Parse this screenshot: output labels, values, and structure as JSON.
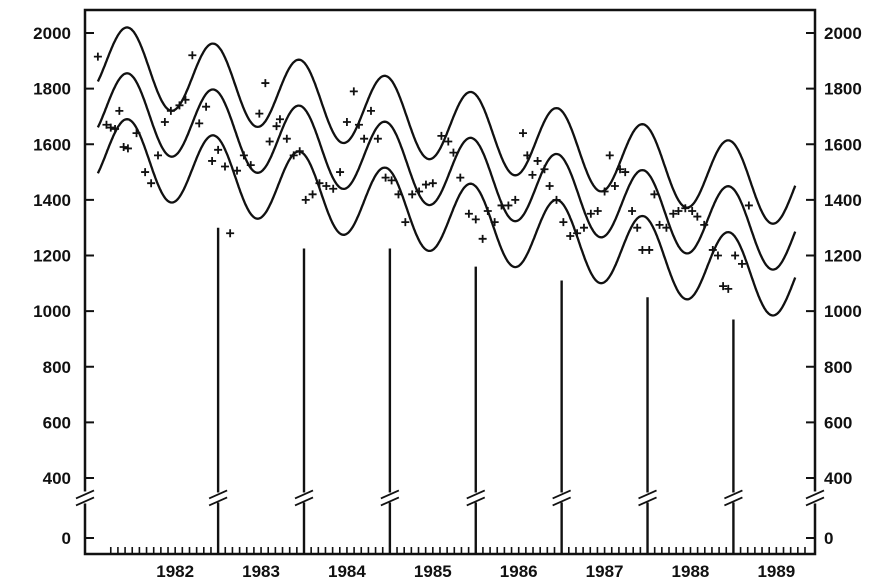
{
  "chart_data": {
    "type": "line",
    "title": "",
    "xlabel": "",
    "ylabel": "",
    "xlim": [
      1981.45,
      1989.95
    ],
    "ylim": [
      0,
      2050
    ],
    "y_axis_break": [
      60,
      300
    ],
    "grid": false,
    "left_ticks": [
      "0",
      "400",
      "600",
      "800",
      "1000",
      "1200",
      "1400",
      "1600",
      "1800",
      "2000"
    ],
    "right_ticks": [
      "0",
      "400",
      "600",
      "800",
      "1000",
      "1200",
      "1400",
      "1600",
      "1800",
      "2000"
    ],
    "x_tick_labels": [
      "1982",
      "1983",
      "1984",
      "1985",
      "1986",
      "1987",
      "1988",
      "1989"
    ],
    "x_tick_positions": [
      1982.0,
      1983.0,
      1984.0,
      1985.0,
      1986.0,
      1987.0,
      1988.0,
      1989.0
    ],
    "curve_model": {
      "base_at_1981_6": 1740,
      "slope_per_year": -58,
      "amplitude": 135,
      "peak_phase": 0.35,
      "band_offsets": [
        165,
        0,
        -165
      ]
    },
    "series": [
      {
        "values": [
          [
            1981.6,
            1915
          ],
          [
            1981.7,
            1670
          ],
          [
            1981.75,
            1660
          ],
          [
            1981.8,
            1655
          ],
          [
            1981.85,
            1720
          ],
          [
            1981.9,
            1590
          ],
          [
            1981.95,
            1585
          ],
          [
            1982.05,
            1640
          ],
          [
            1982.15,
            1500
          ],
          [
            1982.22,
            1460
          ],
          [
            1982.3,
            1560
          ],
          [
            1982.38,
            1680
          ],
          [
            1982.45,
            1720
          ],
          [
            1982.55,
            1740
          ],
          [
            1982.62,
            1760
          ],
          [
            1982.7,
            1920
          ],
          [
            1982.78,
            1675
          ],
          [
            1982.86,
            1735
          ],
          [
            1982.93,
            1540
          ],
          [
            1983.0,
            1580
          ],
          [
            1983.08,
            1520
          ],
          [
            1983.14,
            1280
          ],
          [
            1983.22,
            1505
          ],
          [
            1983.3,
            1560
          ],
          [
            1983.38,
            1525
          ],
          [
            1983.48,
            1710
          ],
          [
            1983.55,
            1820
          ],
          [
            1983.6,
            1610
          ],
          [
            1983.68,
            1665
          ],
          [
            1983.72,
            1690
          ],
          [
            1983.8,
            1620
          ],
          [
            1983.88,
            1560
          ],
          [
            1983.95,
            1575
          ],
          [
            1984.02,
            1400
          ],
          [
            1984.1,
            1420
          ],
          [
            1984.18,
            1460
          ],
          [
            1984.26,
            1450
          ],
          [
            1984.34,
            1440
          ],
          [
            1984.42,
            1500
          ],
          [
            1984.5,
            1680
          ],
          [
            1984.58,
            1790
          ],
          [
            1984.64,
            1670
          ],
          [
            1984.7,
            1620
          ],
          [
            1984.78,
            1720
          ],
          [
            1984.86,
            1620
          ],
          [
            1984.95,
            1480
          ],
          [
            1985.02,
            1470
          ],
          [
            1985.1,
            1420
          ],
          [
            1985.18,
            1320
          ],
          [
            1985.26,
            1420
          ],
          [
            1985.34,
            1430
          ],
          [
            1985.42,
            1455
          ],
          [
            1985.5,
            1460
          ],
          [
            1985.6,
            1630
          ],
          [
            1985.68,
            1610
          ],
          [
            1985.74,
            1570
          ],
          [
            1985.82,
            1480
          ],
          [
            1985.92,
            1350
          ],
          [
            1986.0,
            1330
          ],
          [
            1986.08,
            1260
          ],
          [
            1986.14,
            1360
          ],
          [
            1986.22,
            1320
          ],
          [
            1986.3,
            1380
          ],
          [
            1986.38,
            1380
          ],
          [
            1986.46,
            1400
          ],
          [
            1986.55,
            1640
          ],
          [
            1986.6,
            1560
          ],
          [
            1986.66,
            1490
          ],
          [
            1986.72,
            1540
          ],
          [
            1986.8,
            1510
          ],
          [
            1986.86,
            1450
          ],
          [
            1986.94,
            1400
          ],
          [
            1987.02,
            1320
          ],
          [
            1987.1,
            1270
          ],
          [
            1987.18,
            1280
          ],
          [
            1987.26,
            1300
          ],
          [
            1987.34,
            1350
          ],
          [
            1987.42,
            1360
          ],
          [
            1987.5,
            1430
          ],
          [
            1987.56,
            1560
          ],
          [
            1987.62,
            1450
          ],
          [
            1987.68,
            1510
          ],
          [
            1987.74,
            1500
          ],
          [
            1987.82,
            1360
          ],
          [
            1987.88,
            1300
          ],
          [
            1987.94,
            1220
          ],
          [
            1988.02,
            1220
          ],
          [
            1988.08,
            1420
          ],
          [
            1988.14,
            1310
          ],
          [
            1988.22,
            1300
          ],
          [
            1988.3,
            1350
          ],
          [
            1988.36,
            1360
          ],
          [
            1988.44,
            1370
          ],
          [
            1988.52,
            1360
          ],
          [
            1988.58,
            1340
          ],
          [
            1988.66,
            1310
          ],
          [
            1988.76,
            1220
          ],
          [
            1988.82,
            1200
          ],
          [
            1988.88,
            1090
          ],
          [
            1988.94,
            1080
          ],
          [
            1989.02,
            1200
          ],
          [
            1989.1,
            1170
          ],
          [
            1989.18,
            1380
          ]
        ]
      }
    ]
  }
}
